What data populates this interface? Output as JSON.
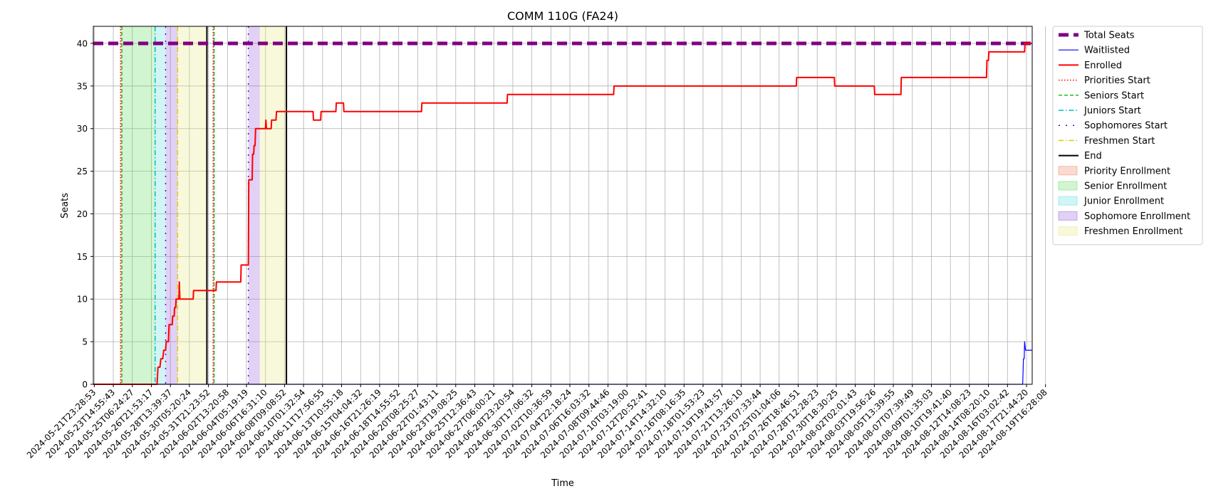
{
  "chart_data": {
    "type": "line",
    "title": "COMM 110G (FA24)",
    "xlabel": "Time",
    "ylabel": "Seats",
    "ylim": [
      0,
      42
    ],
    "yticks": [
      0,
      5,
      10,
      15,
      20,
      25,
      30,
      35,
      40
    ],
    "grid": true,
    "legend_position": "outside-right",
    "x_tick_labels": [
      "2024-05-21T23:28:53",
      "2024-05-23T14:55:43",
      "2024-05-25T06:24:27",
      "2024-05-26T21:53:17",
      "2024-05-28T13:39:37",
      "2024-05-30T05:20:24",
      "2024-05-31T21:23:52",
      "2024-06-02T13:20:58",
      "2024-06-04T05:19:19",
      "2024-06-06T16:31:10",
      "2024-06-08T09:08:52",
      "2024-06-10T01:32:54",
      "2024-06-11T17:56:55",
      "2024-06-13T10:55:18",
      "2024-06-15T04:04:32",
      "2024-06-16T21:26:19",
      "2024-06-18T14:55:52",
      "2024-06-20T08:25:27",
      "2024-06-22T01:43:11",
      "2024-06-23T19:08:25",
      "2024-06-25T12:36:43",
      "2024-06-27T06:00:21",
      "2024-06-28T23:20:54",
      "2024-06-30T17:06:32",
      "2024-07-02T10:36:59",
      "2024-07-04T22:18:24",
      "2024-07-06T16:03:32",
      "2024-07-08T09:44:46",
      "2024-07-10T03:19:00",
      "2024-07-12T20:52:41",
      "2024-07-14T14:32:10",
      "2024-07-16T08:16:35",
      "2024-07-18T01:53:23",
      "2024-07-19T19:43:57",
      "2024-07-21T13:26:10",
      "2024-07-23T07:33:44",
      "2024-07-25T01:04:06",
      "2024-07-26T18:46:51",
      "2024-07-28T12:28:23",
      "2024-07-30T18:30:25",
      "2024-08-02T02:01:43",
      "2024-08-03T19:56:26",
      "2024-08-05T13:39:55",
      "2024-08-07T07:39:49",
      "2024-08-09T01:35:03",
      "2024-08-10T19:41:40",
      "2024-08-12T14:08:23",
      "2024-08-14T08:20:10",
      "2024-08-16T03:02:42",
      "2024-08-17T21:44:20",
      "2024-08-19T16:28:08"
    ],
    "x_range": [
      -0.05,
      49.3
    ],
    "series": [
      {
        "name": "Total Seats",
        "color": "#800080",
        "style": "dashed-thick",
        "points": [
          [
            -0.05,
            40
          ],
          [
            49.3,
            40
          ]
        ]
      },
      {
        "name": "Waitlisted",
        "color": "#0000ff",
        "style": "solid-thin",
        "points": [
          [
            -0.05,
            0
          ],
          [
            48.8,
            0
          ],
          [
            48.84,
            3
          ],
          [
            48.88,
            3
          ],
          [
            48.9,
            5
          ],
          [
            48.95,
            4
          ],
          [
            49.3,
            4
          ]
        ]
      },
      {
        "name": "Enrolled",
        "color": "#ff0000",
        "style": "solid",
        "points": [
          [
            -0.05,
            0
          ],
          [
            3.3,
            0
          ],
          [
            3.35,
            2
          ],
          [
            3.45,
            2
          ],
          [
            3.5,
            3
          ],
          [
            3.6,
            3
          ],
          [
            3.65,
            4
          ],
          [
            3.75,
            4
          ],
          [
            3.78,
            5
          ],
          [
            3.9,
            5
          ],
          [
            3.93,
            7
          ],
          [
            4.1,
            7
          ],
          [
            4.12,
            8
          ],
          [
            4.2,
            8
          ],
          [
            4.22,
            9
          ],
          [
            4.28,
            9
          ],
          [
            4.3,
            10
          ],
          [
            4.45,
            10
          ],
          [
            4.47,
            12
          ],
          [
            4.5,
            10
          ],
          [
            5.2,
            10
          ],
          [
            5.22,
            11
          ],
          [
            6.4,
            11
          ],
          [
            6.42,
            12
          ],
          [
            7.7,
            12
          ],
          [
            7.72,
            14
          ],
          [
            8.1,
            14
          ],
          [
            8.12,
            24
          ],
          [
            8.3,
            24
          ],
          [
            8.32,
            27
          ],
          [
            8.38,
            27
          ],
          [
            8.4,
            28
          ],
          [
            8.45,
            28
          ],
          [
            8.48,
            30
          ],
          [
            9.0,
            30
          ],
          [
            9.02,
            31
          ],
          [
            9.05,
            30
          ],
          [
            9.3,
            30
          ],
          [
            9.32,
            31
          ],
          [
            9.55,
            31
          ],
          [
            9.58,
            32
          ],
          [
            11.5,
            32
          ],
          [
            11.52,
            31
          ],
          [
            11.9,
            31
          ],
          [
            11.92,
            32
          ],
          [
            12.7,
            32
          ],
          [
            12.72,
            33
          ],
          [
            13.1,
            33
          ],
          [
            13.12,
            32
          ],
          [
            17.2,
            32
          ],
          [
            17.22,
            33
          ],
          [
            21.7,
            33
          ],
          [
            21.72,
            34
          ],
          [
            27.3,
            34
          ],
          [
            27.32,
            35
          ],
          [
            36.9,
            35
          ],
          [
            36.92,
            36
          ],
          [
            38.9,
            36
          ],
          [
            38.92,
            35
          ],
          [
            41.0,
            35
          ],
          [
            41.02,
            34
          ],
          [
            42.4,
            34
          ],
          [
            42.42,
            36
          ],
          [
            46.9,
            36
          ],
          [
            46.92,
            38
          ],
          [
            47.0,
            38
          ],
          [
            47.02,
            39
          ],
          [
            48.9,
            39
          ],
          [
            48.92,
            40
          ],
          [
            49.3,
            40
          ]
        ]
      }
    ],
    "vertical_lines": [
      {
        "name": "Priorities Start",
        "x": 1.38,
        "color": "#ff0000",
        "style": "dotted"
      },
      {
        "name": "Seniors Start",
        "x": 1.45,
        "color": "#22bb22",
        "style": "dashed"
      },
      {
        "name": "Juniors Start",
        "x": 3.2,
        "color": "#00bbcc",
        "style": "dashdot"
      },
      {
        "name": "Sophomores Start",
        "x": 3.75,
        "color": "#6600cc",
        "style": "loosedot"
      },
      {
        "name": "Freshmen Start",
        "x": 4.38,
        "color": "#ddcc00",
        "style": "dashdot"
      },
      {
        "name": "End",
        "x": 5.92,
        "color": "#000000",
        "style": "solid"
      },
      {
        "name": "Priorities Start",
        "x": 6.25,
        "color": "#ff0000",
        "style": "dotted"
      },
      {
        "name": "Seniors Start",
        "x": 6.3,
        "color": "#22bb22",
        "style": "dashed"
      },
      {
        "name": "Sophomores Start",
        "x": 8.1,
        "color": "#6600cc",
        "style": "loosedot"
      },
      {
        "name": "End",
        "x": 10.1,
        "color": "#000000",
        "style": "solid"
      }
    ],
    "spans": [
      {
        "name": "Priority Enrollment",
        "x0": 1.38,
        "x1": 1.45,
        "color": "#ee8866"
      },
      {
        "name": "Senior Enrollment",
        "x0": 1.45,
        "x1": 3.2,
        "color": "#66dd66"
      },
      {
        "name": "Junior Enrollment",
        "x0": 3.2,
        "x1": 3.75,
        "color": "#66dddd"
      },
      {
        "name": "Sophomore Enrollment",
        "x0": 3.75,
        "x1": 4.38,
        "color": "#9966dd"
      },
      {
        "name": "Freshmen Enrollment",
        "x0": 4.38,
        "x1": 5.92,
        "color": "#e8e888"
      },
      {
        "name": "Priority Enrollment",
        "x0": 6.25,
        "x1": 6.3,
        "color": "#ee8866"
      },
      {
        "name": "Sophomore Enrollment",
        "x0": 8.1,
        "x1": 8.7,
        "color": "#9966dd"
      },
      {
        "name": "Freshmen Enrollment",
        "x0": 8.7,
        "x1": 10.1,
        "color": "#e8e888"
      }
    ],
    "legend": [
      {
        "label": "Total Seats",
        "kind": "line",
        "color": "#800080",
        "style": "dashed-thick"
      },
      {
        "label": "Waitlisted",
        "kind": "line",
        "color": "#0000ff",
        "style": "solid-thin"
      },
      {
        "label": "Enrolled",
        "kind": "line",
        "color": "#ff0000",
        "style": "solid"
      },
      {
        "label": "Priorities Start",
        "kind": "line",
        "color": "#ff0000",
        "style": "dotted"
      },
      {
        "label": "Seniors Start",
        "kind": "line",
        "color": "#22bb22",
        "style": "dashed"
      },
      {
        "label": "Juniors Start",
        "kind": "line",
        "color": "#00bbcc",
        "style": "dashdot"
      },
      {
        "label": "Sophomores Start",
        "kind": "line",
        "color": "#6600cc",
        "style": "loosedot"
      },
      {
        "label": "Freshmen Start",
        "kind": "line",
        "color": "#ddcc00",
        "style": "dashdot"
      },
      {
        "label": "End",
        "kind": "line",
        "color": "#000000",
        "style": "solid"
      },
      {
        "label": "Priority Enrollment",
        "kind": "patch",
        "color": "#ee8866"
      },
      {
        "label": "Senior Enrollment",
        "kind": "patch",
        "color": "#66dd66"
      },
      {
        "label": "Junior Enrollment",
        "kind": "patch",
        "color": "#66dddd"
      },
      {
        "label": "Sophomore Enrollment",
        "kind": "patch",
        "color": "#9966dd"
      },
      {
        "label": "Freshmen Enrollment",
        "kind": "patch",
        "color": "#e8e888"
      }
    ]
  }
}
